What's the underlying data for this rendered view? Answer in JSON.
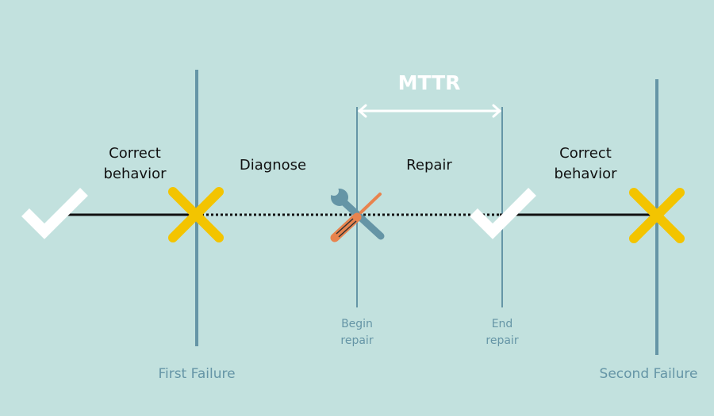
{
  "title": "MTTR",
  "phases": {
    "correct_behavior_1": [
      "Correct",
      "behavior"
    ],
    "diagnose": "Diagnose",
    "repair": "Repair",
    "correct_behavior_2": [
      "Correct",
      "behavior"
    ]
  },
  "markers": {
    "begin_repair": [
      "Begin",
      "repair"
    ],
    "end_repair": [
      "End",
      "repair"
    ],
    "first_failure": "First Failure",
    "second_failure": "Second Failure"
  },
  "icons": [
    "check-icon",
    "x-failure-icon",
    "wrench-screwdriver-icon",
    "check-icon",
    "x-failure-icon"
  ],
  "colors": {
    "background": "#c2e1de",
    "failure_line": "#6595a6",
    "failure_x": "#f3c400",
    "check": "#ffffff",
    "timeline": "#111111",
    "wrench": "#6595a6",
    "screwdriver": "#e8834e"
  }
}
